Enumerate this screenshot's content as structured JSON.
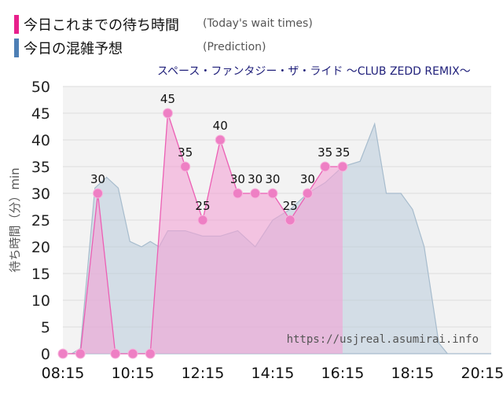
{
  "legend": {
    "actual_label": "今日これまでの待ち時間",
    "actual_sub": "(Today's wait times)",
    "predicted_label": "今日の混雑予想",
    "predicted_sub": "(Prediction)"
  },
  "colors": {
    "actual_line": "#ec5fb4",
    "actual_fill": "#f4a3d6",
    "actual_marker": "#ee7fc4",
    "predicted_fill": "#b3c8d9",
    "predicted_line": "#a7bccd",
    "legend_actual": "#e8208c",
    "legend_predicted": "#4d7fb5",
    "plot_bg": "#f3f3f3",
    "title": "#1f1f7a"
  },
  "watermark": "https://usjreal.asumirai.info",
  "chart_data": {
    "type": "area",
    "title": "スペース・ファンタジー・ザ・ライド ～CLUB ZEDD REMIX～",
    "ylabel": "待ち時間（分）min",
    "xlabel": "",
    "ylim": [
      0,
      50
    ],
    "y_ticks": [
      0,
      5,
      10,
      15,
      20,
      25,
      30,
      35,
      40,
      45,
      50
    ],
    "x_range": [
      "08:15",
      "20:30"
    ],
    "x_tick_labels": [
      "08:15",
      "10:15",
      "12:15",
      "14:15",
      "16:15",
      "18:15",
      "20:15"
    ],
    "grid": true,
    "series": [
      {
        "name": "今日これまでの待ち時間",
        "kind": "actual",
        "points": [
          {
            "x": "08:15",
            "y": 0
          },
          {
            "x": "08:45",
            "y": 0
          },
          {
            "x": "09:15",
            "y": 30
          },
          {
            "x": "09:45",
            "y": 0
          },
          {
            "x": "10:15",
            "y": 0
          },
          {
            "x": "10:45",
            "y": 0
          },
          {
            "x": "11:15",
            "y": 45
          },
          {
            "x": "11:45",
            "y": 35
          },
          {
            "x": "12:15",
            "y": 25
          },
          {
            "x": "12:45",
            "y": 40
          },
          {
            "x": "13:15",
            "y": 30
          },
          {
            "x": "13:45",
            "y": 30
          },
          {
            "x": "14:15",
            "y": 30
          },
          {
            "x": "14:45",
            "y": 25
          },
          {
            "x": "15:15",
            "y": 30
          },
          {
            "x": "15:45",
            "y": 35
          },
          {
            "x": "16:15",
            "y": 35
          }
        ],
        "labels": [
          "30",
          "45",
          "35",
          "25",
          "40",
          "30",
          "30",
          "30",
          "25",
          "30",
          "35",
          "35"
        ]
      },
      {
        "name": "今日の混雑予想",
        "kind": "prediction",
        "points": [
          {
            "x": "08:15",
            "y": 0
          },
          {
            "x": "08:30",
            "y": 0
          },
          {
            "x": "08:45",
            "y": 1
          },
          {
            "x": "09:10",
            "y": 31
          },
          {
            "x": "09:30",
            "y": 33
          },
          {
            "x": "09:50",
            "y": 31
          },
          {
            "x": "10:10",
            "y": 21
          },
          {
            "x": "10:30",
            "y": 20
          },
          {
            "x": "10:45",
            "y": 21
          },
          {
            "x": "11:00",
            "y": 20
          },
          {
            "x": "11:15",
            "y": 23
          },
          {
            "x": "11:45",
            "y": 23
          },
          {
            "x": "12:15",
            "y": 22
          },
          {
            "x": "12:45",
            "y": 22
          },
          {
            "x": "13:15",
            "y": 23
          },
          {
            "x": "13:45",
            "y": 20
          },
          {
            "x": "14:15",
            "y": 25
          },
          {
            "x": "14:45",
            "y": 27
          },
          {
            "x": "15:15",
            "y": 30
          },
          {
            "x": "15:45",
            "y": 32
          },
          {
            "x": "16:15",
            "y": 35
          },
          {
            "x": "16:45",
            "y": 36
          },
          {
            "x": "17:10",
            "y": 43
          },
          {
            "x": "17:30",
            "y": 30
          },
          {
            "x": "17:55",
            "y": 30
          },
          {
            "x": "18:15",
            "y": 27
          },
          {
            "x": "18:35",
            "y": 20
          },
          {
            "x": "19:00",
            "y": 2
          },
          {
            "x": "19:15",
            "y": 0
          },
          {
            "x": "20:30",
            "y": 0
          }
        ]
      }
    ]
  }
}
